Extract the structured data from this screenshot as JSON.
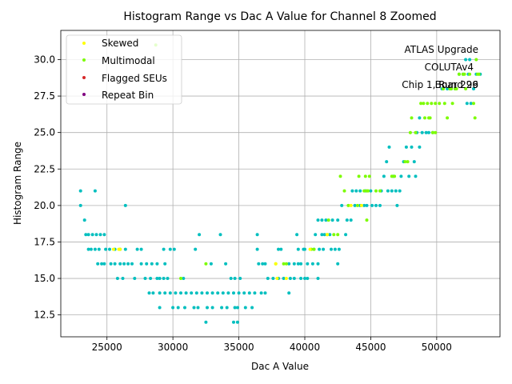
{
  "chart_data": {
    "type": "scatter",
    "title": "Histogram Range vs Dac A Value for Channel 8 Zoomed",
    "xlabel": "Dac A Value",
    "ylabel": "Histogram Range",
    "xlim": [
      21500,
      54800
    ],
    "ylim": [
      11,
      32
    ],
    "xticks": [
      25000,
      30000,
      35000,
      40000,
      45000,
      50000
    ],
    "yticks": [
      12.5,
      15.0,
      17.5,
      20.0,
      22.5,
      25.0,
      27.5,
      30.0
    ],
    "grid": true,
    "legend_position": "upper-left",
    "annotation_lines": [
      "ATLAS Upgrade",
      "COLUTAv4",
      "Board 96",
      "Chip 1, Run 229"
    ],
    "series": [
      {
        "name": "Skewed",
        "color": "#ffff00",
        "points": [
          [
            25500,
            17
          ],
          [
            25900,
            17
          ],
          [
            26000,
            17
          ],
          [
            37800,
            16
          ],
          [
            37900,
            15
          ],
          [
            38600,
            15
          ],
          [
            40400,
            17
          ],
          [
            41700,
            18
          ],
          [
            43500,
            20
          ],
          [
            44300,
            20
          ]
        ]
      },
      {
        "name": "Multimodal",
        "color": "#7cfc00",
        "points": [
          [
            28700,
            31
          ],
          [
            30600,
            15
          ],
          [
            32500,
            16
          ],
          [
            37800,
            16
          ],
          [
            38400,
            16
          ],
          [
            38600,
            16
          ],
          [
            40500,
            17
          ],
          [
            40700,
            17
          ],
          [
            41700,
            18
          ],
          [
            41800,
            19
          ],
          [
            42200,
            18
          ],
          [
            42500,
            18
          ],
          [
            42700,
            22
          ],
          [
            43000,
            21
          ],
          [
            43300,
            20
          ],
          [
            44000,
            20
          ],
          [
            44100,
            22
          ],
          [
            44500,
            21
          ],
          [
            44600,
            22
          ],
          [
            44700,
            21
          ],
          [
            44700,
            19
          ],
          [
            44800,
            21
          ],
          [
            44900,
            22
          ],
          [
            45400,
            21
          ],
          [
            45700,
            21
          ],
          [
            46600,
            22
          ],
          [
            46800,
            22
          ],
          [
            47600,
            23
          ],
          [
            47800,
            23
          ],
          [
            48000,
            25
          ],
          [
            48100,
            26
          ],
          [
            48400,
            25
          ],
          [
            48800,
            27
          ],
          [
            49000,
            27
          ],
          [
            49100,
            26
          ],
          [
            49300,
            27
          ],
          [
            49400,
            26
          ],
          [
            49500,
            26
          ],
          [
            49600,
            27
          ],
          [
            49700,
            25
          ],
          [
            49900,
            27
          ],
          [
            49900,
            25
          ],
          [
            50200,
            27
          ],
          [
            50500,
            28
          ],
          [
            50600,
            27
          ],
          [
            50800,
            26
          ],
          [
            51000,
            28
          ],
          [
            51100,
            28
          ],
          [
            51200,
            27
          ],
          [
            51400,
            28
          ],
          [
            51500,
            28
          ],
          [
            51700,
            29
          ],
          [
            52000,
            29
          ],
          [
            52100,
            29
          ],
          [
            52200,
            28
          ],
          [
            52500,
            29
          ],
          [
            52800,
            27
          ],
          [
            52900,
            26
          ],
          [
            53000,
            30
          ],
          [
            53100,
            29
          ],
          [
            53200,
            29
          ]
        ]
      },
      {
        "name": "Flagged SEUs",
        "color": "#d62728",
        "points": []
      },
      {
        "name": "Repeat Bin",
        "color": "#800080",
        "points": []
      },
      {
        "name": "",
        "color": "#00bfbf",
        "points": [
          [
            23000,
            21
          ],
          [
            23000,
            20
          ],
          [
            23300,
            19
          ],
          [
            23400,
            18
          ],
          [
            23600,
            18
          ],
          [
            23900,
            18
          ],
          [
            24200,
            18
          ],
          [
            24500,
            18
          ],
          [
            24800,
            18
          ],
          [
            23600,
            17
          ],
          [
            23800,
            17
          ],
          [
            24100,
            17
          ],
          [
            24400,
            17
          ],
          [
            24900,
            17
          ],
          [
            25200,
            17
          ],
          [
            25600,
            17
          ],
          [
            24100,
            21
          ],
          [
            24300,
            16
          ],
          [
            24600,
            16
          ],
          [
            24800,
            16
          ],
          [
            25300,
            16
          ],
          [
            25600,
            16
          ],
          [
            26000,
            16
          ],
          [
            26300,
            16
          ],
          [
            26600,
            16
          ],
          [
            26900,
            16
          ],
          [
            26400,
            20
          ],
          [
            26000,
            17
          ],
          [
            26400,
            17
          ],
          [
            25800,
            15
          ],
          [
            26200,
            15
          ],
          [
            27100,
            15
          ],
          [
            27300,
            17
          ],
          [
            27600,
            17
          ],
          [
            27600,
            16
          ],
          [
            28000,
            16
          ],
          [
            28400,
            16
          ],
          [
            28800,
            16
          ],
          [
            27900,
            15
          ],
          [
            28300,
            15
          ],
          [
            28800,
            15
          ],
          [
            28200,
            14
          ],
          [
            28500,
            14
          ],
          [
            29000,
            15
          ],
          [
            29300,
            15
          ],
          [
            29600,
            15
          ],
          [
            29400,
            16
          ],
          [
            29300,
            17
          ],
          [
            29800,
            17
          ],
          [
            30100,
            17
          ],
          [
            29000,
            14
          ],
          [
            29400,
            14
          ],
          [
            29800,
            14
          ],
          [
            30200,
            14
          ],
          [
            30600,
            14
          ],
          [
            31000,
            14
          ],
          [
            31400,
            14
          ],
          [
            31800,
            14
          ],
          [
            32200,
            14
          ],
          [
            32600,
            14
          ],
          [
            33000,
            14
          ],
          [
            33400,
            14
          ],
          [
            33800,
            14
          ],
          [
            34200,
            14
          ],
          [
            30000,
            13
          ],
          [
            30400,
            13
          ],
          [
            30900,
            13
          ],
          [
            31600,
            13
          ],
          [
            31900,
            13
          ],
          [
            32600,
            13
          ],
          [
            33000,
            13
          ],
          [
            33700,
            13
          ],
          [
            34100,
            13
          ],
          [
            34700,
            13
          ],
          [
            34900,
            13
          ],
          [
            35500,
            13
          ],
          [
            36000,
            13
          ],
          [
            29000,
            13
          ],
          [
            30800,
            15
          ],
          [
            31700,
            17
          ],
          [
            32000,
            18
          ],
          [
            32900,
            16
          ],
          [
            33600,
            18
          ],
          [
            34000,
            16
          ],
          [
            34400,
            15
          ],
          [
            34700,
            15
          ],
          [
            35100,
            15
          ],
          [
            32500,
            12
          ],
          [
            34600,
            12
          ],
          [
            34900,
            12
          ],
          [
            34600,
            14
          ],
          [
            35000,
            14
          ],
          [
            35400,
            14
          ],
          [
            35800,
            14
          ],
          [
            36200,
            14
          ],
          [
            36700,
            14
          ],
          [
            37000,
            14
          ],
          [
            36400,
            18
          ],
          [
            36400,
            17
          ],
          [
            36500,
            16
          ],
          [
            36800,
            16
          ],
          [
            37000,
            16
          ],
          [
            37200,
            15
          ],
          [
            37600,
            15
          ],
          [
            38000,
            15
          ],
          [
            38400,
            15
          ],
          [
            38900,
            15
          ],
          [
            39200,
            15
          ],
          [
            39700,
            15
          ],
          [
            40000,
            15
          ],
          [
            40200,
            15
          ],
          [
            38000,
            17
          ],
          [
            38200,
            17
          ],
          [
            38800,
            16
          ],
          [
            39200,
            16
          ],
          [
            39500,
            16
          ],
          [
            39700,
            16
          ],
          [
            39400,
            18
          ],
          [
            39500,
            17
          ],
          [
            38800,
            14
          ],
          [
            39900,
            17
          ],
          [
            40200,
            16
          ],
          [
            40600,
            16
          ],
          [
            41000,
            16
          ],
          [
            40000,
            17
          ],
          [
            40700,
            17
          ],
          [
            40800,
            18
          ],
          [
            41100,
            17
          ],
          [
            41400,
            17
          ],
          [
            41000,
            19
          ],
          [
            41300,
            19
          ],
          [
            41600,
            19
          ],
          [
            41300,
            18
          ],
          [
            41500,
            18
          ],
          [
            41900,
            18
          ],
          [
            41000,
            15
          ],
          [
            42000,
            17
          ],
          [
            42300,
            17
          ],
          [
            42600,
            17
          ],
          [
            42500,
            16
          ],
          [
            42100,
            19
          ],
          [
            42500,
            19
          ],
          [
            42800,
            20
          ],
          [
            43100,
            18
          ],
          [
            43200,
            19
          ],
          [
            43500,
            19
          ],
          [
            43600,
            21
          ],
          [
            43900,
            21
          ],
          [
            43800,
            20
          ],
          [
            44200,
            20
          ],
          [
            44500,
            20
          ],
          [
            44700,
            20
          ],
          [
            44200,
            21
          ],
          [
            44600,
            21
          ],
          [
            45000,
            21
          ],
          [
            45100,
            20
          ],
          [
            45400,
            20
          ],
          [
            45700,
            20
          ],
          [
            45800,
            21
          ],
          [
            46000,
            22
          ],
          [
            46200,
            23
          ],
          [
            46400,
            24
          ],
          [
            46300,
            21
          ],
          [
            46600,
            21
          ],
          [
            46900,
            21
          ],
          [
            47200,
            21
          ],
          [
            47000,
            20
          ],
          [
            46700,
            22
          ],
          [
            47300,
            22
          ],
          [
            47500,
            23
          ],
          [
            47700,
            24
          ],
          [
            47900,
            22
          ],
          [
            48100,
            24
          ],
          [
            48300,
            23
          ],
          [
            48400,
            22
          ],
          [
            48500,
            25
          ],
          [
            48700,
            24
          ],
          [
            48900,
            25
          ],
          [
            49200,
            25
          ],
          [
            48700,
            26
          ],
          [
            49400,
            25
          ],
          [
            49700,
            25
          ],
          [
            50400,
            28
          ],
          [
            50800,
            28
          ],
          [
            51100,
            28
          ],
          [
            51400,
            28
          ],
          [
            51700,
            29
          ],
          [
            52000,
            29
          ],
          [
            52400,
            29
          ],
          [
            52300,
            27
          ],
          [
            52600,
            27
          ],
          [
            52800,
            28
          ],
          [
            53000,
            29
          ],
          [
            53300,
            29
          ],
          [
            52200,
            30
          ],
          [
            52500,
            30
          ]
        ]
      }
    ]
  }
}
